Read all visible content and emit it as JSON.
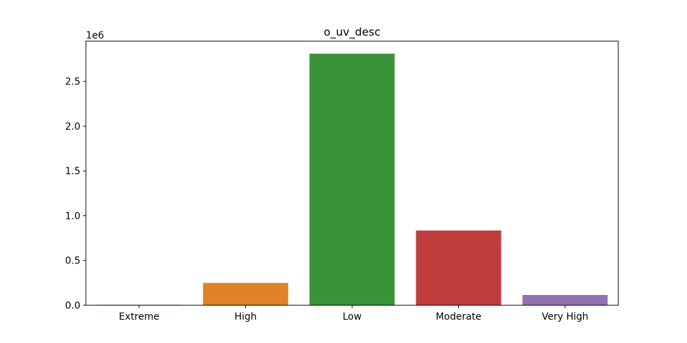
{
  "chart_data": {
    "type": "bar",
    "title": "o_uv_desc",
    "xlabel": "",
    "ylabel": "",
    "y_offset_label": "1e6",
    "categories": [
      "Extreme",
      "High",
      "Low",
      "Moderate",
      "Very High"
    ],
    "values": [
      5000,
      250000,
      2810000,
      835000,
      115000
    ],
    "ylim": [
      0,
      2950000
    ],
    "yticks": [
      0,
      500000,
      1000000,
      1500000,
      2000000,
      2500000
    ],
    "ytick_labels": [
      "0.0",
      "0.5",
      "1.0",
      "1.5",
      "2.0",
      "2.5"
    ],
    "colors": [
      "#3274a1",
      "#e1812c",
      "#3a923a",
      "#c03d3e",
      "#9372b2"
    ],
    "grid": false,
    "legend": false
  }
}
